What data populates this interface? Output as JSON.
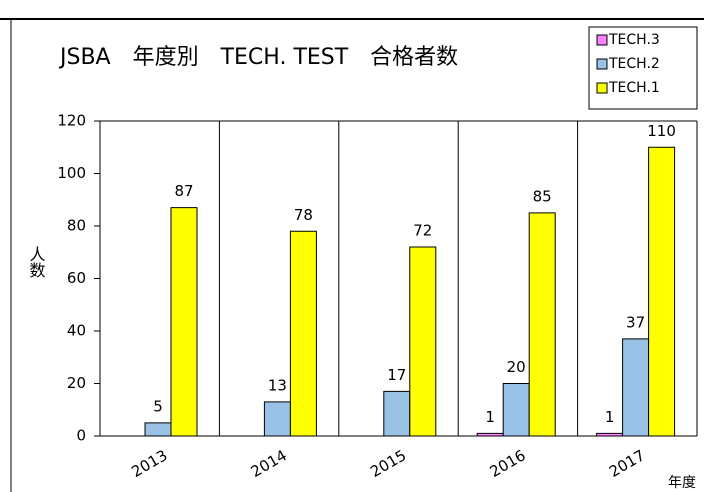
{
  "chart_data": {
    "type": "bar",
    "title": "JSBA　年度別　TECH. TEST　合格者数",
    "x_label": "年度",
    "y_label": "人数",
    "categories": [
      "2013",
      "2014",
      "2015",
      "2016",
      "2017"
    ],
    "series": [
      {
        "name": "TECH.3",
        "color": "#ff80ff",
        "values": [
          null,
          null,
          null,
          1,
          1
        ]
      },
      {
        "name": "TECH.2",
        "color": "#99c2e6",
        "values": [
          5,
          13,
          17,
          20,
          37
        ]
      },
      {
        "name": "TECH.1",
        "color": "#ffff00",
        "values": [
          87,
          78,
          72,
          85,
          110
        ]
      }
    ],
    "ylim": [
      0,
      120
    ],
    "yticks": [
      0,
      20,
      40,
      60,
      80,
      100,
      120
    ],
    "legend": "top-right"
  }
}
